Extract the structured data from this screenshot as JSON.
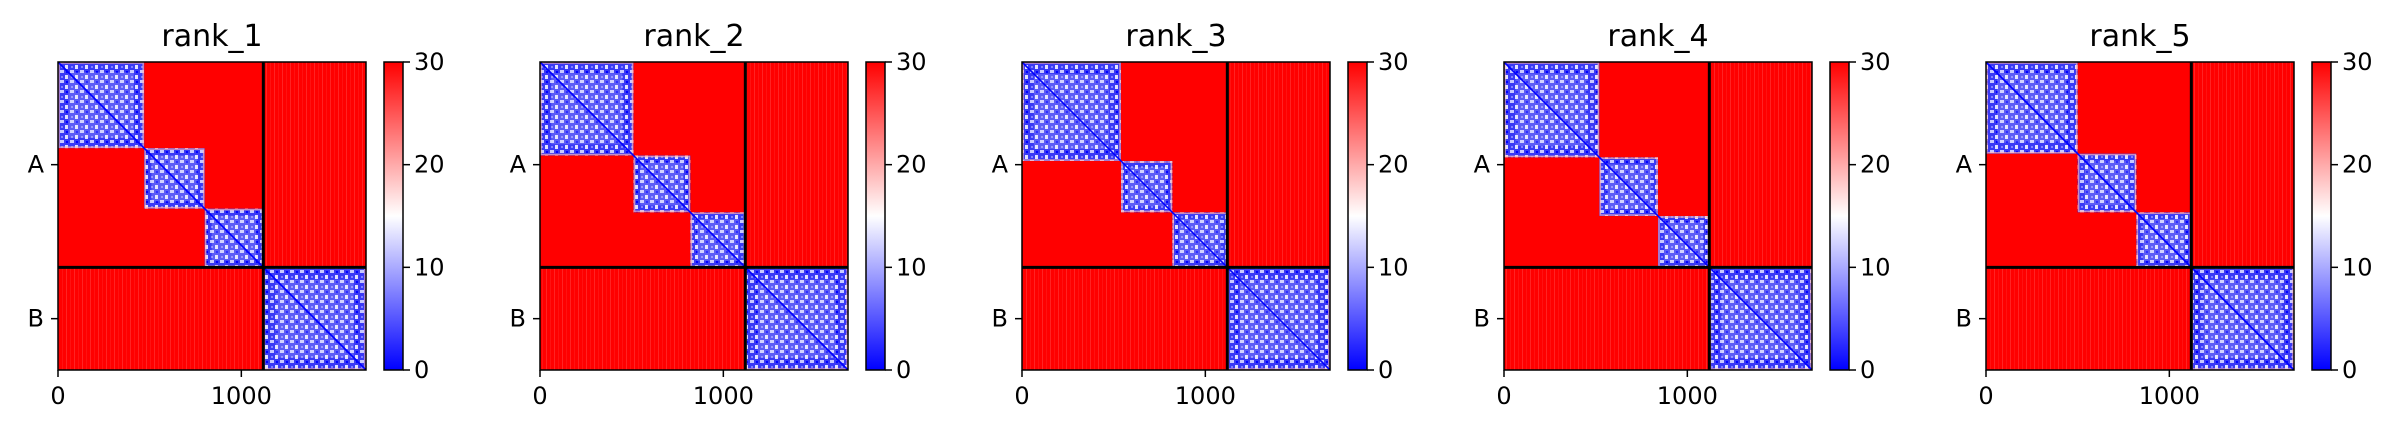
{
  "chart_data": [
    {
      "type": "heatmap",
      "title": "rank_1",
      "x_ticks": [
        0,
        1000
      ],
      "y_ticks": [
        "A",
        "B"
      ],
      "chain_boundary": 1120,
      "total_length": 1680,
      "colorbar": {
        "min": 0,
        "max": 30,
        "ticks": [
          0,
          10,
          20,
          30
        ],
        "colors": [
          "#0000ff",
          "#ffffff",
          "#ff0000"
        ]
      },
      "blocks": [
        [
          0,
          470
        ],
        [
          470,
          800
        ],
        [
          800,
          1120
        ],
        [
          1120,
          1680
        ]
      ]
    },
    {
      "type": "heatmap",
      "title": "rank_2",
      "x_ticks": [
        0,
        1000
      ],
      "y_ticks": [
        "A",
        "B"
      ],
      "chain_boundary": 1120,
      "total_length": 1680,
      "colorbar": {
        "min": 0,
        "max": 30,
        "ticks": [
          0,
          10,
          20,
          30
        ],
        "colors": [
          "#0000ff",
          "#ffffff",
          "#ff0000"
        ]
      },
      "blocks": [
        [
          0,
          510
        ],
        [
          510,
          820
        ],
        [
          820,
          1120
        ],
        [
          1120,
          1680
        ]
      ]
    },
    {
      "type": "heatmap",
      "title": "rank_3",
      "x_ticks": [
        0,
        1000
      ],
      "y_ticks": [
        "A",
        "B"
      ],
      "chain_boundary": 1120,
      "total_length": 1680,
      "colorbar": {
        "min": 0,
        "max": 30,
        "ticks": [
          0,
          10,
          20,
          30
        ],
        "colors": [
          "#0000ff",
          "#ffffff",
          "#ff0000"
        ]
      },
      "blocks": [
        [
          0,
          540
        ],
        [
          540,
          820
        ],
        [
          820,
          1120
        ],
        [
          1120,
          1680
        ]
      ]
    },
    {
      "type": "heatmap",
      "title": "rank_4",
      "x_ticks": [
        0,
        1000
      ],
      "y_ticks": [
        "A",
        "B"
      ],
      "chain_boundary": 1120,
      "total_length": 1680,
      "colorbar": {
        "min": 0,
        "max": 30,
        "ticks": [
          0,
          10,
          20,
          30
        ],
        "colors": [
          "#0000ff",
          "#ffffff",
          "#ff0000"
        ]
      },
      "blocks": [
        [
          0,
          520
        ],
        [
          520,
          840
        ],
        [
          840,
          1120
        ],
        [
          1120,
          1680
        ]
      ]
    },
    {
      "type": "heatmap",
      "title": "rank_5",
      "x_ticks": [
        0,
        1000
      ],
      "y_ticks": [
        "A",
        "B"
      ],
      "chain_boundary": 1120,
      "total_length": 1680,
      "colorbar": {
        "min": 0,
        "max": 30,
        "ticks": [
          0,
          10,
          20,
          30
        ],
        "colors": [
          "#0000ff",
          "#ffffff",
          "#ff0000"
        ]
      },
      "blocks": [
        [
          0,
          500
        ],
        [
          500,
          820
        ],
        [
          820,
          1120
        ],
        [
          1120,
          1680
        ]
      ]
    }
  ]
}
